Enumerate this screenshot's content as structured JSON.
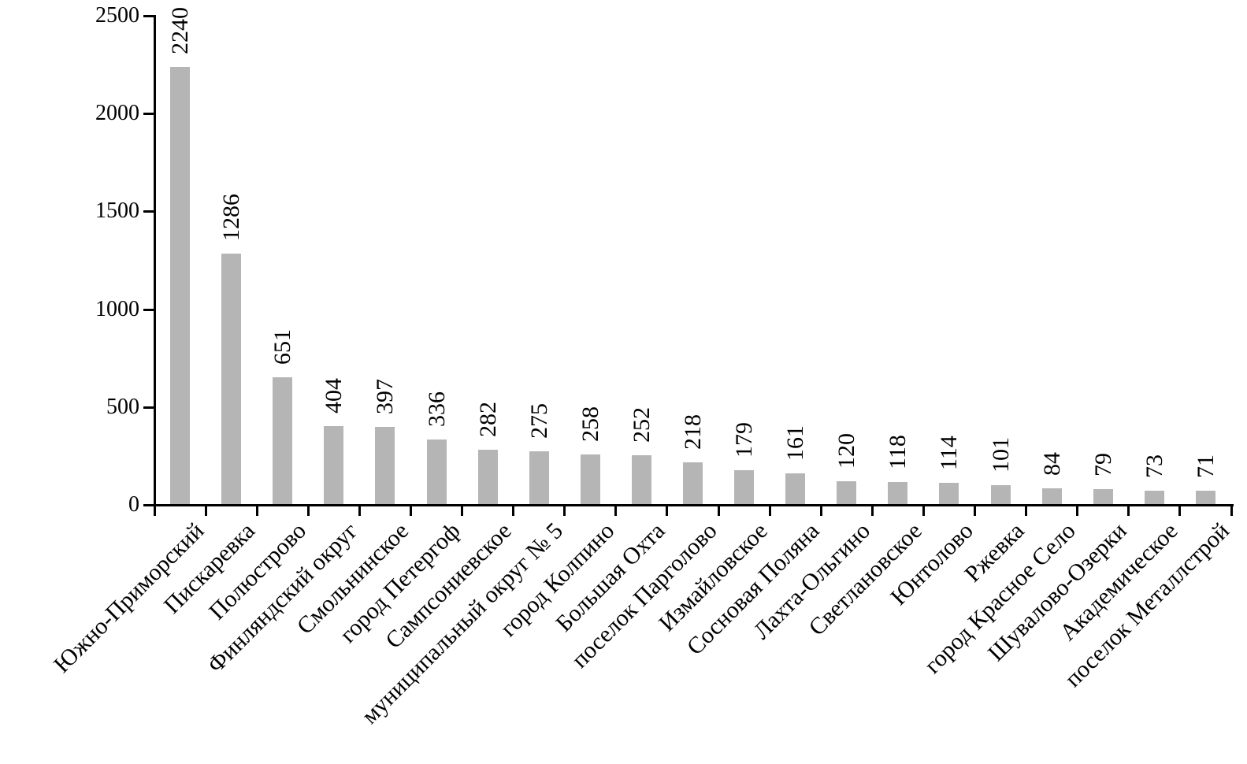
{
  "chart_data": {
    "type": "bar",
    "title": "",
    "xlabel": "",
    "ylabel": "",
    "categories": [
      "Южно-Приморский",
      "Пискаревка",
      "Полюстрово",
      "Финляндский округ",
      "Смольнинское",
      "город Петергоф",
      "Сампсониевское",
      "муниципальный округ № 5",
      "город Колпино",
      "Большая Охта",
      "поселок Парголово",
      "Измайловское",
      "Сосновая Поляна",
      "Лахта-Ольгино",
      "Светлановское",
      "Юнтолово",
      "Ржевка",
      "город Красное Село",
      "Шувалово-Озерки",
      "Академическое",
      "поселок Металлстрой"
    ],
    "values": [
      2240,
      1286,
      651,
      404,
      397,
      336,
      282,
      275,
      258,
      252,
      218,
      179,
      161,
      120,
      118,
      114,
      101,
      84,
      79,
      73,
      71
    ],
    "ylim": [
      0,
      2500
    ],
    "yticks": [
      0,
      500,
      1000,
      1500,
      2000,
      2500
    ],
    "grid": false,
    "legend": "none",
    "bar_color": "#b5b5b5",
    "axis_color": "#000000",
    "text_color": "#000000",
    "background_color": "#ffffff",
    "value_labels_rotation_deg": 90,
    "category_labels_rotation_deg": 45
  }
}
